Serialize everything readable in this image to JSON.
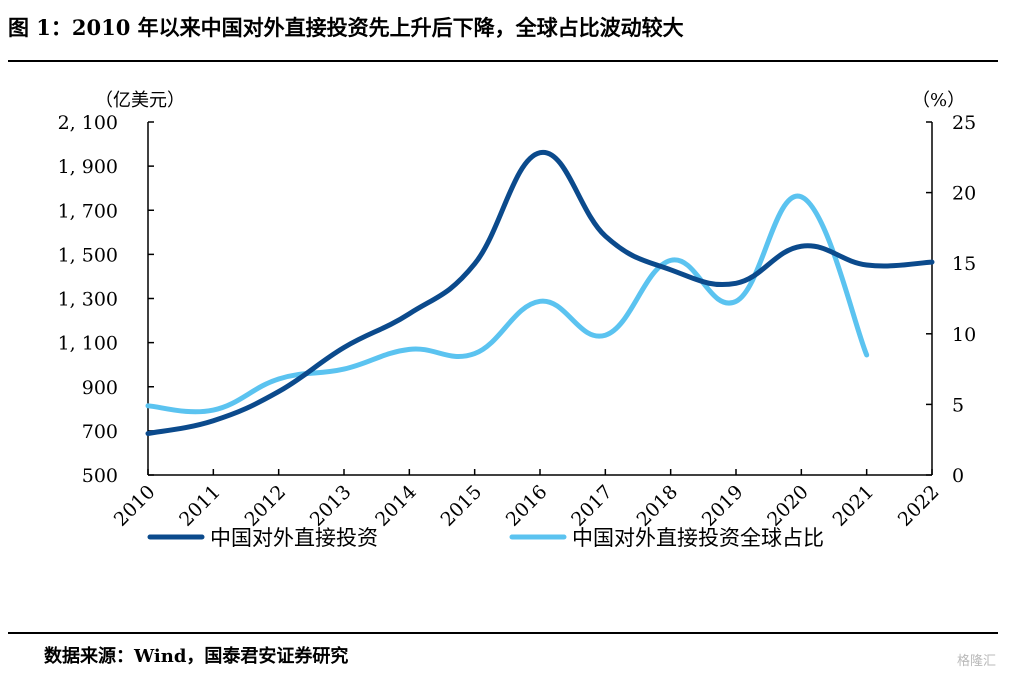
{
  "header": {
    "title": "图 1：2010 年以来中国对外直接投资先上升后下降，全球占比波动较大"
  },
  "chart_data": {
    "type": "line",
    "title": "",
    "xlabel": "",
    "ylabel": "（亿美元）",
    "ylabel_right": "（%）",
    "categories": [
      "2010",
      "2011",
      "2012",
      "2013",
      "2014",
      "2015",
      "2016",
      "2017",
      "2018",
      "2019",
      "2020",
      "2021",
      "2022"
    ],
    "y_left_ticks": [
      "500",
      "700",
      "900",
      "1, 100",
      "1, 300",
      "1, 500",
      "1, 700",
      "1, 900",
      "2, 100"
    ],
    "y_right_ticks": [
      "0",
      "5",
      "10",
      "15",
      "20",
      "25"
    ],
    "ylim": [
      500,
      2100
    ],
    "ylim_right": [
      0,
      25
    ],
    "grid": false,
    "legend_position": "bottom",
    "series": [
      {
        "name": "中国对外直接投资",
        "axis": "left",
        "color": "#0b4a8c",
        "values": [
          688,
          746,
          878,
          1078,
          1231,
          1457,
          1961,
          1583,
          1430,
          1369,
          1537,
          1452,
          1465
        ]
      },
      {
        "name": "中国对外直接投资全球占比",
        "axis": "right",
        "color": "#5bc3f0",
        "values": [
          4.9,
          4.6,
          6.8,
          7.5,
          8.9,
          8.6,
          12.3,
          9.9,
          15.2,
          12.3,
          19.7,
          8.5,
          null
        ]
      }
    ]
  },
  "footer": {
    "source": "数据来源：Wind，国泰君安证券研究",
    "watermark": "格隆汇"
  }
}
